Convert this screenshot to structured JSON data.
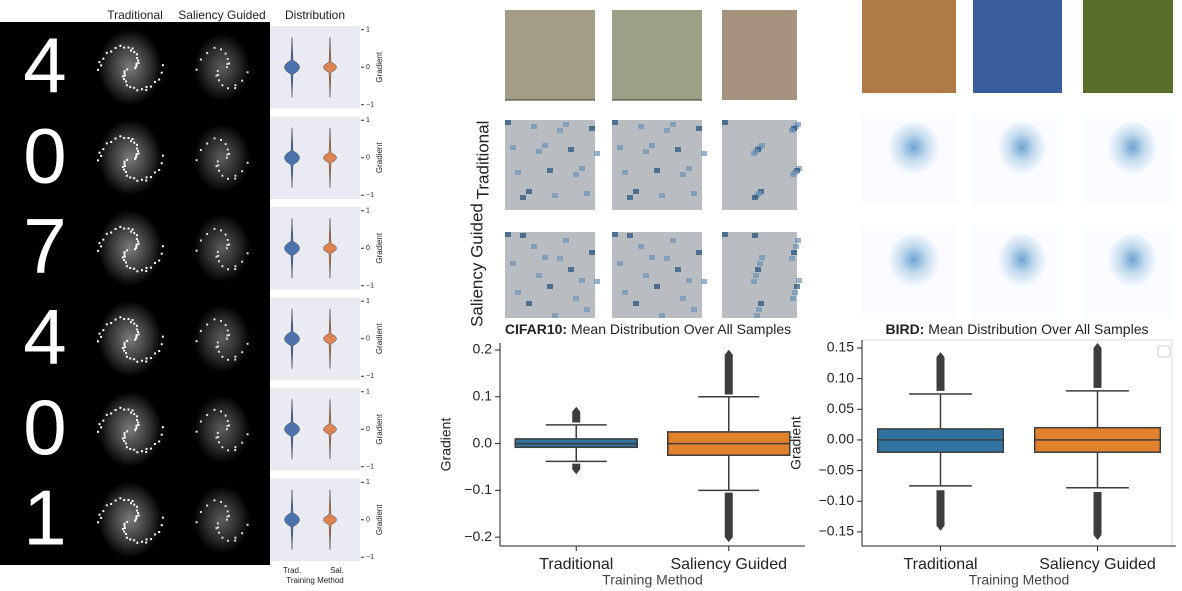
{
  "mnist": {
    "column_titles": [
      "Traditional",
      "Saliency Guided",
      "Distribution"
    ],
    "digits": [
      "4",
      "0",
      "7",
      "4",
      "0",
      "1"
    ]
  },
  "cifar_panel": {
    "row_labels": [
      "Traditional",
      "Saliency Guided"
    ]
  },
  "chart_data": [
    {
      "type": "violin",
      "y_label": "Gradient",
      "x_label": "Training Method",
      "categories": [
        "Trad.",
        "Sal."
      ],
      "colors": [
        "#4c72b0",
        "#dd8452"
      ],
      "ylim": [
        -1.1,
        1.1
      ],
      "yticks": [
        1,
        0,
        {
          "value": -1,
          "label": "−1"
        }
      ]
    },
    {
      "type": "box",
      "title_prefix": "CIFAR10:",
      "title": "Mean Distribution Over All Samples",
      "x_label": "Training Method",
      "y_label": "Gradient",
      "categories": [
        "Traditional",
        "Saliency Guided"
      ],
      "colors": [
        "#3274a1",
        "#e1812c"
      ],
      "whisker_low": [
        -0.038,
        -0.1
      ],
      "q1": [
        -0.008,
        -0.025
      ],
      "median": [
        0.0,
        0.0
      ],
      "q3": [
        0.01,
        0.025
      ],
      "whisker_high": [
        0.04,
        0.1
      ],
      "outliers_low": [
        [
          -0.043,
          -0.055
        ],
        [
          -0.105,
          -0.2
        ]
      ],
      "outliers_high": [
        [
          0.045,
          0.068
        ],
        [
          0.105,
          0.19
        ]
      ],
      "ylim": [
        -0.219,
        0.215
      ],
      "yticks": [
        0.2,
        0.1,
        {
          "value": 0,
          "label": "0.0"
        },
        {
          "value": -0.1,
          "label": "−0.1"
        },
        {
          "value": -0.2,
          "label": "−0.2"
        }
      ]
    },
    {
      "type": "box",
      "title_prefix": "BIRD:",
      "title": "Mean Distribution Over All Samples",
      "x_label": "Training Method",
      "y_label": "Gradient",
      "categories": [
        "Traditional",
        "Saliency Guided"
      ],
      "colors": [
        "#3274a1",
        "#e1812c"
      ],
      "whisker_low": [
        -0.075,
        -0.078
      ],
      "q1": [
        -0.02,
        -0.02
      ],
      "median": [
        0.0,
        0.0
      ],
      "q3": [
        0.018,
        0.02
      ],
      "whisker_high": [
        0.075,
        0.08
      ],
      "outliers_low": [
        [
          -0.082,
          -0.14
        ],
        [
          -0.085,
          -0.155
        ]
      ],
      "outliers_high": [
        [
          0.08,
          0.135
        ],
        [
          0.085,
          0.15
        ]
      ],
      "ylim": [
        -0.173,
        0.163
      ],
      "legend": "upper right",
      "yticks": [
        0.15,
        {
          "value": 0.1,
          "label": "0.10"
        },
        0.05,
        {
          "value": 0,
          "label": "0.00"
        },
        {
          "value": -0.05,
          "label": "−0.05"
        },
        {
          "value": -0.1,
          "label": "−0.10"
        },
        {
          "value": -0.15,
          "label": "−0.15"
        }
      ]
    }
  ]
}
